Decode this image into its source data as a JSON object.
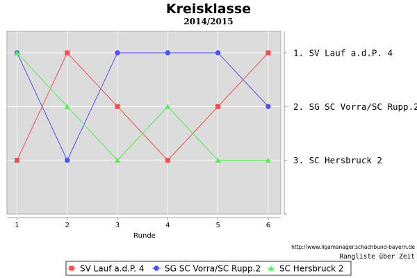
{
  "chart_data": {
    "type": "line",
    "title": "Kreisklasse",
    "subtitle": "2014/2015",
    "xlabel": "Runde",
    "ylabel": "",
    "x": [
      1,
      2,
      3,
      4,
      5,
      6
    ],
    "xlim": [
      0.8,
      6.25
    ],
    "ylim": [
      0.6,
      4.0
    ],
    "y_inverted": true,
    "grid": true,
    "right_axis_labels": [
      {
        "rank": 1,
        "label": "1. SV Lauf a.d.P. 4"
      },
      {
        "rank": 2,
        "label": "2. SG SC Vorra/SC Rupp.2"
      },
      {
        "rank": 3,
        "label": "3. SC Hersbruck 2"
      }
    ],
    "series": [
      {
        "name": "SV Lauf a.d.P. 4",
        "color": "#f0504f",
        "marker": "square",
        "values": [
          3,
          1,
          2,
          3,
          2,
          1
        ]
      },
      {
        "name": "SG SC Vorra/SC Rupp.2",
        "color": "#5050f0",
        "marker": "circle",
        "values": [
          1,
          3,
          1,
          1,
          1,
          2
        ]
      },
      {
        "name": "SC Hersbruck 2",
        "color": "#50f050",
        "marker": "triangle",
        "values": [
          1,
          2,
          3,
          2,
          3,
          3
        ]
      }
    ],
    "source": "http://www.ligamanager.schachbund-bayern.de",
    "caption": "Rangliste über Zeit",
    "legend_position": "bottom"
  }
}
